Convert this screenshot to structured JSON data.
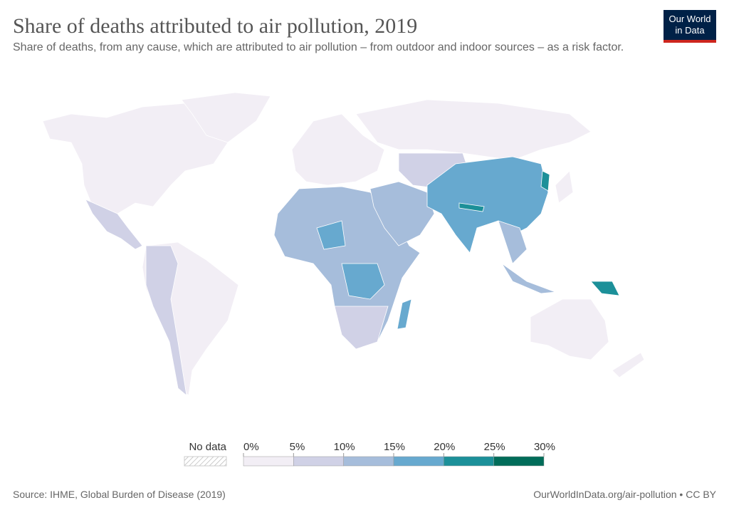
{
  "header": {
    "title": "Share of deaths attributed to air pollution, 2019",
    "subtitle": "Share of deaths, from any cause, which are attributed to air pollution – from outdoor and indoor sources – as a risk factor.",
    "logo": [
      "Our World",
      "in Data"
    ]
  },
  "legend": {
    "no_data": "No data",
    "ticks": [
      {
        "value": 0,
        "label": "0%"
      },
      {
        "value": 5,
        "label": "5%"
      },
      {
        "value": 10,
        "label": "10%"
      },
      {
        "value": 15,
        "label": "15%"
      },
      {
        "value": 20,
        "label": "20%"
      },
      {
        "value": 25,
        "label": "25%"
      },
      {
        "value": 30,
        "label": "30%"
      }
    ],
    "colors": [
      "#f2eef5",
      "#d0d1e6",
      "#a6bddb",
      "#67a9cf",
      "#1c9099",
      "#016c59"
    ]
  },
  "footer": {
    "source": "Source: IHME, Global Burden of Disease (2019)",
    "url": "OurWorldInData.org/air-pollution • CC BY"
  }
}
